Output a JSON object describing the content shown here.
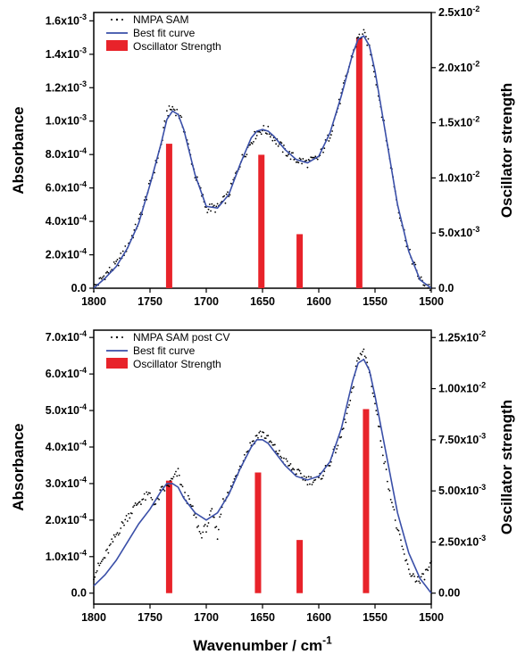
{
  "chart_data": [
    {
      "type": "bar",
      "xlabel": "",
      "ylabel": "Absorbance",
      "y2label": "Oscillator strength",
      "xlim": [
        1800,
        1500
      ],
      "ylim": [
        0,
        0.00165
      ],
      "y2lim": [
        0,
        0.025
      ],
      "xticks": [
        "1800",
        "1750",
        "1700",
        "1650",
        "1600",
        "1550",
        "1500"
      ],
      "yticks": [
        {
          "label": "0.0",
          "value": 0
        },
        {
          "label": "2.0x10-4",
          "value": 0.0002
        },
        {
          "label": "4.0x10-4",
          "value": 0.0004
        },
        {
          "label": "6.0x10-4",
          "value": 0.0006
        },
        {
          "label": "8.0x10-4",
          "value": 0.0008
        },
        {
          "label": "1.0x10-3",
          "value": 0.001
        },
        {
          "label": "1.2x10-3",
          "value": 0.0012
        },
        {
          "label": "1.4x10-3",
          "value": 0.0014
        },
        {
          "label": "1.6x10-3",
          "value": 0.0016
        }
      ],
      "y2ticks": [
        {
          "label": "0.0",
          "value": 0
        },
        {
          "label": "5.0x10-3",
          "value": 0.005
        },
        {
          "label": "1.0x10-2",
          "value": 0.01
        },
        {
          "label": "1.5x10-2",
          "value": 0.015
        },
        {
          "label": "2.0x10-2",
          "value": 0.02
        },
        {
          "label": "2.5x10-2",
          "value": 0.025
        }
      ],
      "legend_position": "top-left",
      "legend": [
        "NMPA SAM",
        "Best fit curve",
        "Oscillator Strength"
      ],
      "series": [
        {
          "name": "NMPA SAM",
          "style": "scatter",
          "x": [
            1800,
            1790,
            1780,
            1770,
            1760,
            1750,
            1740,
            1735,
            1730,
            1725,
            1720,
            1710,
            1700,
            1690,
            1680,
            1670,
            1660,
            1655,
            1650,
            1645,
            1640,
            1630,
            1620,
            1610,
            1600,
            1590,
            1580,
            1570,
            1565,
            1560,
            1555,
            1550,
            1540,
            1530,
            1520,
            1510,
            1500
          ],
          "y": [
            0.0,
            8e-05,
            0.00014,
            0.00025,
            0.0004,
            0.00062,
            0.00086,
            0.00105,
            0.00108,
            0.00105,
            0.00096,
            0.00068,
            0.00048,
            0.00048,
            0.00056,
            0.00075,
            0.00088,
            0.00093,
            0.00095,
            0.00094,
            0.0009,
            0.00082,
            0.00077,
            0.00075,
            0.00078,
            0.00092,
            0.00115,
            0.0014,
            0.0015,
            0.00152,
            0.00145,
            0.00128,
            0.0009,
            0.0005,
            0.00022,
            5e-05,
            0.0
          ]
        },
        {
          "name": "Best fit curve",
          "style": "line",
          "color": "#3a4fa8",
          "x": [
            1800,
            1790,
            1780,
            1770,
            1760,
            1750,
            1740,
            1735,
            1730,
            1725,
            1720,
            1710,
            1700,
            1690,
            1680,
            1670,
            1660,
            1655,
            1650,
            1645,
            1640,
            1630,
            1620,
            1610,
            1600,
            1590,
            1580,
            1570,
            1565,
            1560,
            1555,
            1550,
            1540,
            1530,
            1520,
            1510,
            1500
          ],
          "y": [
            0.0,
            6e-05,
            0.00013,
            0.00024,
            0.00039,
            0.00062,
            0.00087,
            0.00101,
            0.00106,
            0.00104,
            0.00095,
            0.00068,
            0.00049,
            0.00048,
            0.00056,
            0.00074,
            0.0009,
            0.00094,
            0.00095,
            0.00094,
            0.00091,
            0.00083,
            0.00077,
            0.00075,
            0.00079,
            0.00093,
            0.00115,
            0.0014,
            0.00149,
            0.00151,
            0.00145,
            0.0013,
            0.0009,
            0.0005,
            0.00022,
            5e-05,
            0.0
          ]
        },
        {
          "name": "Oscillator Strength",
          "style": "bar",
          "axis": "right",
          "color": "#e8232a",
          "x": [
            1733,
            1651,
            1617,
            1564
          ],
          "y": [
            0.0131,
            0.0121,
            0.0049,
            0.0227
          ]
        }
      ]
    },
    {
      "type": "bar",
      "xlabel": "Wavenumber / cm-1",
      "ylabel": "Absorbance",
      "y2label": "Oscillator strength",
      "xlim": [
        1800,
        1500
      ],
      "ylim": [
        -3e-05,
        0.00072
      ],
      "y2lim": [
        -0.000536,
        0.01286
      ],
      "xticks": [
        "1800",
        "1750",
        "1700",
        "1650",
        "1600",
        "1550",
        "1500"
      ],
      "yticks": [
        {
          "label": "0.0",
          "value": 0
        },
        {
          "label": "1.0x10-4",
          "value": 0.0001
        },
        {
          "label": "2.0x10-4",
          "value": 0.0002
        },
        {
          "label": "3.0x10-4",
          "value": 0.0003
        },
        {
          "label": "4.0x10-4",
          "value": 0.0004
        },
        {
          "label": "5.0x10-4",
          "value": 0.0005
        },
        {
          "label": "6.0x10-4",
          "value": 0.0006
        },
        {
          "label": "7.0x10-4",
          "value": 0.0007
        }
      ],
      "y2ticks": [
        {
          "label": "0.00",
          "value": 0
        },
        {
          "label": "2.50x10-3",
          "value": 0.0025
        },
        {
          "label": "5.00x10-3",
          "value": 0.005
        },
        {
          "label": "7.50x10-3",
          "value": 0.0075
        },
        {
          "label": "1.00x10-2",
          "value": 0.01
        },
        {
          "label": "1.25x10-2",
          "value": 0.0125
        }
      ],
      "legend_position": "top-left",
      "legend": [
        "NMPA SAM post CV",
        "Best fit curve",
        "Oscillator Strength"
      ],
      "series": [
        {
          "name": "NMPA SAM post CV",
          "style": "scatter",
          "x": [
            1800,
            1790,
            1780,
            1770,
            1760,
            1750,
            1745,
            1740,
            1735,
            1730,
            1725,
            1720,
            1715,
            1710,
            1705,
            1700,
            1695,
            1690,
            1685,
            1680,
            1670,
            1660,
            1655,
            1650,
            1645,
            1640,
            1630,
            1620,
            1610,
            1600,
            1590,
            1580,
            1570,
            1565,
            1560,
            1555,
            1550,
            1540,
            1530,
            1520,
            1510,
            1500
          ],
          "y": [
            5e-05,
            0.0001,
            0.00016,
            0.00021,
            0.00025,
            0.00027,
            0.00024,
            0.00028,
            0.00029,
            0.00031,
            0.00033,
            0.00027,
            0.00025,
            0.00021,
            0.00016,
            0.00018,
            0.00022,
            0.00016,
            0.00026,
            0.00027,
            0.00035,
            0.00041,
            0.00043,
            0.00044,
            0.00042,
            0.0004,
            0.00036,
            0.00033,
            0.00031,
            0.00031,
            0.00036,
            0.00043,
            0.00055,
            0.00065,
            0.00066,
            0.00061,
            0.00052,
            0.00033,
            0.00017,
            6e-05,
            3e-05,
            8e-05
          ]
        },
        {
          "name": "Best fit curve",
          "style": "line",
          "color": "#3a4fa8",
          "x": [
            1800,
            1790,
            1780,
            1770,
            1760,
            1750,
            1740,
            1735,
            1730,
            1725,
            1720,
            1710,
            1700,
            1690,
            1680,
            1670,
            1660,
            1655,
            1650,
            1645,
            1640,
            1630,
            1620,
            1610,
            1600,
            1590,
            1580,
            1570,
            1565,
            1560,
            1555,
            1550,
            1540,
            1530,
            1520,
            1510,
            1500
          ],
          "y": [
            2e-05,
            5e-05,
            9e-05,
            0.00014,
            0.00019,
            0.00023,
            0.00028,
            0.0003,
            0.0003,
            0.00029,
            0.00026,
            0.00022,
            0.0002,
            0.00022,
            0.00027,
            0.00034,
            0.0004,
            0.00042,
            0.00042,
            0.00041,
            0.00039,
            0.00035,
            0.00032,
            0.00031,
            0.00032,
            0.00036,
            0.00045,
            0.00058,
            0.00063,
            0.00064,
            0.00061,
            0.00054,
            0.00038,
            0.00022,
            0.00011,
            4e-05,
            0.0
          ]
        },
        {
          "name": "Oscillator Strength",
          "style": "bar",
          "axis": "right",
          "color": "#e8232a",
          "x": [
            1733,
            1654,
            1617,
            1558
          ],
          "y": [
            0.0055,
            0.0059,
            0.0026,
            0.009
          ]
        }
      ]
    }
  ]
}
